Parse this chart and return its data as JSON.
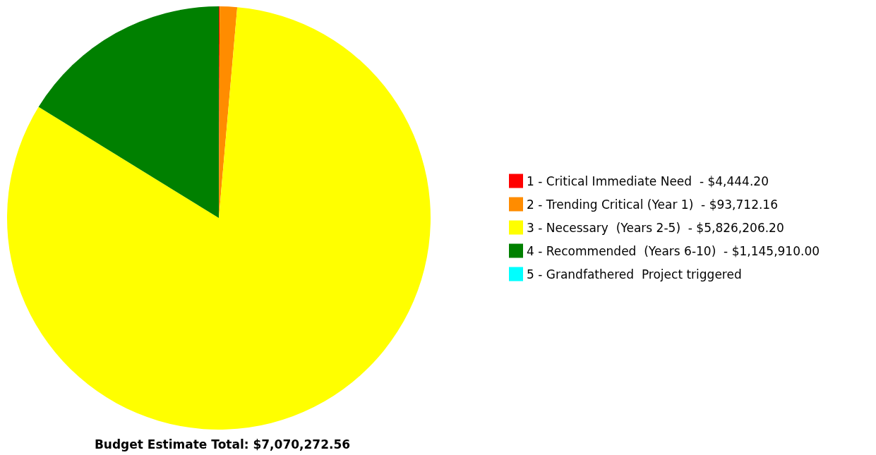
{
  "chart_data": {
    "type": "pie",
    "title": "Budget Estimate Total: $7,070,272.56",
    "categories": [
      "1 - Critical Immediate Need",
      "2 - Trending Critical (Year 1)",
      "3 - Necessary  (Years 2-5)",
      "4 - Recommended  (Years 6-10)",
      "5 - Grandfathered  Project triggered"
    ],
    "value_labels": [
      "$4,444.20",
      "$93,712.16",
      "$5,826,206.20",
      "$1,145,910.00",
      null
    ],
    "values": [
      4444.2,
      93712.16,
      5826206.2,
      1145910.0,
      0
    ],
    "colors": [
      "#ff0000",
      "#ff8c00",
      "#ffff00",
      "#008000",
      "#00ffff"
    ],
    "legend": "right"
  }
}
